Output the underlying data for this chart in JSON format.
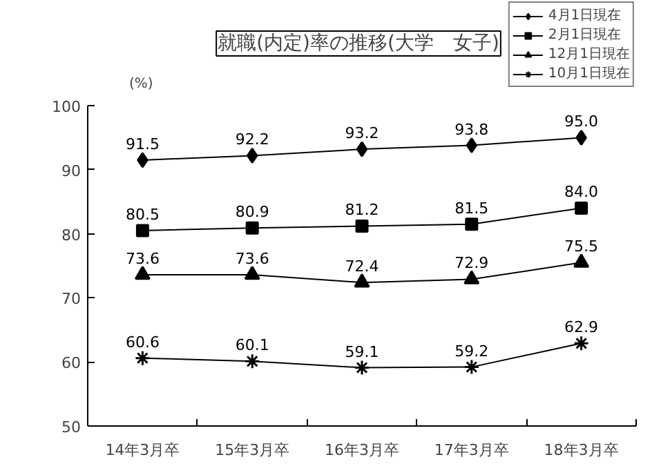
{
  "chart_data": {
    "type": "line",
    "title": "就職(内定)率の推移(大学　女子)",
    "ylabel": "(%)",
    "categories": [
      "14年3月卒",
      "15年3月卒",
      "16年3月卒",
      "17年3月卒",
      "18年3月卒"
    ],
    "series": [
      {
        "name": "4月1日現在",
        "color": "#000000",
        "marker": "diamond",
        "values": [
          91.5,
          92.2,
          93.2,
          93.8,
          95.0
        ],
        "value_labels": [
          "91.5",
          "92.2",
          "93.2",
          "93.8",
          "95.0"
        ]
      },
      {
        "name": "2月1日現在",
        "color": "#000000",
        "marker": "square",
        "values": [
          80.5,
          80.9,
          81.2,
          81.5,
          84.0
        ],
        "value_labels": [
          "80.5",
          "80.9",
          "81.2",
          "81.5",
          "84.0"
        ]
      },
      {
        "name": "12月1日現在",
        "color": "#000000",
        "marker": "triangle",
        "values": [
          73.6,
          73.6,
          72.4,
          72.9,
          75.5
        ],
        "value_labels": [
          "73.6",
          "73.6",
          "72.4",
          "72.9",
          "75.5"
        ]
      },
      {
        "name": "10月1日現在",
        "color": "#000000",
        "marker": "cross",
        "values": [
          60.6,
          60.1,
          59.1,
          59.2,
          62.9
        ],
        "value_labels": [
          "60.6",
          "60.1",
          "59.1",
          "59.2",
          "62.9"
        ]
      }
    ],
    "ylim": [
      50,
      100
    ],
    "yticks": [
      50,
      60,
      70,
      80,
      90,
      100
    ],
    "grid": false,
    "legend": "top right",
    "line_style": "solid"
  }
}
